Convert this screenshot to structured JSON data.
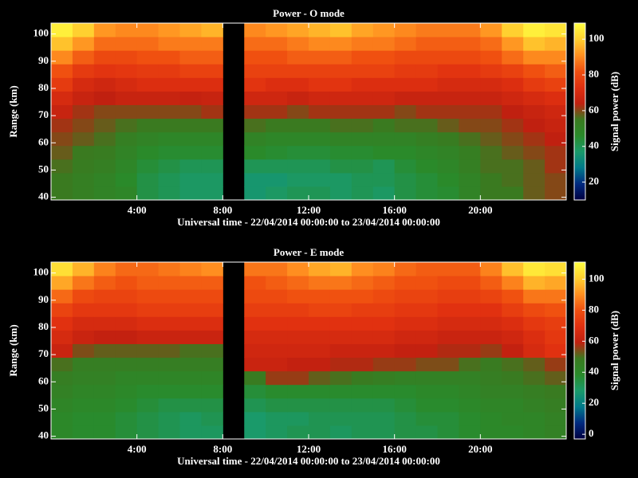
{
  "chart_data": [
    {
      "type": "heatmap",
      "title": "Power - O mode",
      "xlabel": "Universal time - 22/04/2014 00:00:00 to 23/04/2014 00:00:00",
      "ylabel": "Range (km)",
      "colorbar_label": "Signal power (dB)",
      "x_bins": [
        0,
        1,
        2,
        3,
        4,
        5,
        6,
        7,
        8,
        9,
        10,
        11,
        12,
        13,
        14,
        15,
        16,
        17,
        18,
        19,
        20,
        21,
        22,
        23,
        24
      ],
      "y_bins": [
        39,
        44,
        49,
        54,
        59,
        64,
        69,
        74,
        79,
        84,
        89,
        94,
        99,
        104
      ],
      "values": [
        [
          55,
          52,
          50,
          48,
          42,
          40,
          38,
          38,
          null,
          36,
          38,
          40,
          40,
          38,
          40,
          38,
          42,
          44,
          45,
          50,
          55,
          55,
          58,
          60
        ],
        [
          55,
          52,
          50,
          46,
          42,
          40,
          38,
          38,
          null,
          36,
          36,
          38,
          38,
          38,
          40,
          40,
          42,
          44,
          46,
          50,
          55,
          56,
          58,
          60
        ],
        [
          56,
          54,
          52,
          48,
          44,
          42,
          40,
          40,
          null,
          40,
          40,
          40,
          40,
          42,
          42,
          40,
          44,
          46,
          48,
          52,
          56,
          56,
          58,
          62
        ],
        [
          58,
          55,
          54,
          50,
          46,
          45,
          45,
          45,
          null,
          46,
          45,
          44,
          44,
          45,
          45,
          46,
          46,
          48,
          50,
          53,
          56,
          58,
          60,
          62
        ],
        [
          60,
          58,
          56,
          52,
          50,
          48,
          48,
          48,
          null,
          50,
          48,
          48,
          48,
          50,
          50,
          50,
          50,
          52,
          54,
          56,
          58,
          60,
          62,
          64
        ],
        [
          62,
          60,
          58,
          56,
          55,
          55,
          55,
          55,
          null,
          56,
          55,
          55,
          55,
          56,
          56,
          55,
          56,
          56,
          58,
          60,
          60,
          62,
          64,
          66
        ],
        [
          66,
          62,
          60,
          60,
          60,
          60,
          60,
          62,
          null,
          62,
          62,
          60,
          62,
          62,
          62,
          62,
          60,
          62,
          62,
          62,
          62,
          64,
          66,
          68
        ],
        [
          70,
          66,
          64,
          66,
          66,
          66,
          65,
          66,
          null,
          68,
          68,
          66,
          68,
          68,
          68,
          68,
          66,
          66,
          66,
          66,
          66,
          68,
          70,
          72
        ],
        [
          76,
          70,
          68,
          70,
          72,
          72,
          72,
          72,
          null,
          74,
          72,
          72,
          74,
          74,
          72,
          72,
          72,
          72,
          70,
          70,
          70,
          72,
          76,
          78
        ],
        [
          82,
          76,
          74,
          75,
          76,
          76,
          78,
          78,
          null,
          78,
          78,
          78,
          78,
          78,
          78,
          78,
          76,
          76,
          74,
          74,
          76,
          78,
          82,
          84
        ],
        [
          90,
          84,
          80,
          80,
          82,
          82,
          84,
          84,
          null,
          82,
          82,
          84,
          84,
          84,
          82,
          82,
          80,
          80,
          80,
          80,
          82,
          86,
          90,
          90
        ],
        [
          98,
          92,
          86,
          86,
          86,
          88,
          88,
          88,
          null,
          86,
          86,
          88,
          90,
          90,
          88,
          88,
          86,
          84,
          84,
          84,
          86,
          92,
          98,
          96
        ],
        [
          106,
          100,
          92,
          90,
          90,
          92,
          94,
          96,
          null,
          90,
          92,
          94,
          96,
          98,
          94,
          92,
          90,
          88,
          88,
          88,
          92,
          100,
          106,
          104
        ]
      ],
      "xlim": [
        0,
        24
      ],
      "ylim": [
        39,
        104
      ],
      "xticks": [
        {
          "value": 4,
          "label": "4:00"
        },
        {
          "value": 8,
          "label": "8:00"
        },
        {
          "value": 12,
          "label": "12:00"
        },
        {
          "value": 16,
          "label": "16:00"
        },
        {
          "value": 20,
          "label": "20:00"
        }
      ],
      "yticks": [
        40,
        50,
        60,
        70,
        80,
        90,
        100
      ],
      "clim": [
        10,
        109
      ],
      "cticks": [
        20,
        40,
        60,
        80,
        100
      ],
      "colors": [
        "#000040",
        "#002a80",
        "#007a8a",
        "#1a9a6a",
        "#2a8a2a",
        "#3a7a20",
        "#c02010",
        "#e03010",
        "#f05010",
        "#ff9020",
        "#ffd030",
        "#ffff40"
      ]
    },
    {
      "type": "heatmap",
      "title": "Power - E mode",
      "xlabel": "Universal time - 22/04/2014 00:00:00 to 23/04/2014 00:00:00",
      "ylabel": "Range (km)",
      "colorbar_label": "Signal power (dB)",
      "x_bins": [
        0,
        1,
        2,
        3,
        4,
        5,
        6,
        7,
        8,
        9,
        10,
        11,
        12,
        13,
        14,
        15,
        16,
        17,
        18,
        19,
        20,
        21,
        22,
        23,
        24
      ],
      "y_bins": [
        39,
        44,
        49,
        54,
        59,
        64,
        69,
        74,
        79,
        84,
        89,
        94,
        99,
        104
      ],
      "values": [
        [
          40,
          38,
          38,
          36,
          34,
          32,
          30,
          30,
          null,
          28,
          30,
          32,
          32,
          30,
          32,
          32,
          34,
          34,
          36,
          38,
          40,
          40,
          42,
          44
        ],
        [
          40,
          38,
          38,
          36,
          34,
          32,
          30,
          32,
          null,
          28,
          30,
          30,
          32,
          32,
          32,
          32,
          34,
          36,
          36,
          38,
          40,
          42,
          42,
          44
        ],
        [
          42,
          40,
          40,
          38,
          36,
          34,
          34,
          34,
          null,
          32,
          34,
          34,
          34,
          34,
          34,
          34,
          36,
          38,
          38,
          40,
          42,
          42,
          44,
          46
        ],
        [
          44,
          42,
          42,
          40,
          38,
          38,
          38,
          38,
          null,
          36,
          38,
          38,
          38,
          38,
          38,
          38,
          38,
          40,
          40,
          42,
          44,
          44,
          46,
          48
        ],
        [
          46,
          44,
          44,
          42,
          42,
          42,
          42,
          42,
          null,
          48,
          56,
          56,
          52,
          50,
          48,
          46,
          44,
          44,
          44,
          44,
          46,
          48,
          50,
          52
        ],
        [
          50,
          46,
          46,
          46,
          46,
          46,
          46,
          46,
          null,
          62,
          62,
          60,
          60,
          58,
          58,
          56,
          56,
          54,
          54,
          50,
          48,
          50,
          52,
          56
        ],
        [
          62,
          54,
          52,
          52,
          52,
          52,
          50,
          50,
          null,
          64,
          64,
          64,
          64,
          62,
          62,
          62,
          60,
          60,
          58,
          58,
          56,
          60,
          66,
          70
        ],
        [
          66,
          62,
          60,
          60,
          62,
          62,
          62,
          62,
          null,
          66,
          66,
          66,
          66,
          66,
          66,
          66,
          64,
          64,
          62,
          62,
          62,
          64,
          68,
          72
        ],
        [
          70,
          66,
          66,
          66,
          68,
          68,
          68,
          68,
          null,
          70,
          70,
          70,
          70,
          70,
          70,
          70,
          68,
          68,
          66,
          66,
          66,
          68,
          72,
          74
        ],
        [
          76,
          72,
          72,
          72,
          74,
          74,
          74,
          74,
          null,
          74,
          74,
          74,
          76,
          76,
          74,
          74,
          72,
          72,
          70,
          70,
          70,
          74,
          78,
          80
        ],
        [
          84,
          78,
          76,
          76,
          78,
          78,
          78,
          78,
          null,
          78,
          78,
          80,
          80,
          80,
          80,
          78,
          76,
          76,
          74,
          74,
          76,
          80,
          86,
          86
        ],
        [
          94,
          86,
          82,
          80,
          82,
          82,
          82,
          82,
          null,
          80,
          82,
          84,
          86,
          86,
          84,
          82,
          80,
          80,
          78,
          78,
          82,
          88,
          96,
          94
        ],
        [
          104,
          96,
          88,
          84,
          84,
          86,
          88,
          90,
          null,
          86,
          86,
          90,
          94,
          96,
          90,
          88,
          84,
          82,
          82,
          82,
          88,
          98,
          106,
          104
        ]
      ],
      "xlim": [
        0,
        24
      ],
      "ylim": [
        39,
        104
      ],
      "xticks": [
        {
          "value": 4,
          "label": "4:00"
        },
        {
          "value": 8,
          "label": "8:00"
        },
        {
          "value": 12,
          "label": "12:00"
        },
        {
          "value": 16,
          "label": "16:00"
        },
        {
          "value": 20,
          "label": "20:00"
        }
      ],
      "yticks": [
        40,
        50,
        60,
        70,
        80,
        90,
        100
      ],
      "clim": [
        -3,
        111
      ],
      "cticks": [
        0,
        20,
        40,
        60,
        80,
        100
      ],
      "colors": [
        "#000040",
        "#002a80",
        "#007a8a",
        "#1a9a6a",
        "#2a8a2a",
        "#3a7a20",
        "#c02010",
        "#e03010",
        "#f05010",
        "#ff9020",
        "#ffd030",
        "#ffff40"
      ]
    }
  ]
}
